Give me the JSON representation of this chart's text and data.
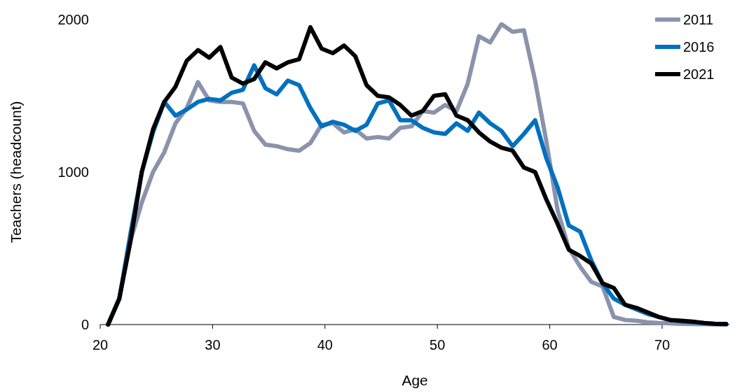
{
  "chart_data": {
    "type": "line",
    "xlabel": "Age",
    "ylabel": "Teachers (headcount)",
    "x": [
      20.7,
      21.7,
      22.7,
      23.7,
      24.7,
      25.7,
      26.7,
      27.7,
      28.7,
      29.7,
      30.7,
      31.7,
      32.7,
      33.7,
      34.7,
      35.7,
      36.7,
      37.7,
      38.7,
      39.7,
      40.7,
      41.7,
      42.7,
      43.7,
      44.7,
      45.7,
      46.7,
      47.7,
      48.7,
      49.7,
      50.7,
      51.7,
      52.7,
      53.7,
      54.7,
      55.7,
      56.7,
      57.7,
      58.7,
      59.7,
      60.7,
      61.7,
      62.7,
      63.7,
      64.7,
      65.7,
      66.7,
      67.7,
      68.7,
      69.7,
      70.7,
      71.7,
      72.7,
      73.7,
      74.7,
      75.7
    ],
    "series": [
      {
        "name": "2011",
        "color": "#8a93ab",
        "values": [
          0,
          170,
          550,
          800,
          1000,
          1130,
          1320,
          1420,
          1590,
          1470,
          1460,
          1460,
          1450,
          1270,
          1180,
          1170,
          1150,
          1140,
          1190,
          1310,
          1320,
          1260,
          1280,
          1220,
          1230,
          1220,
          1290,
          1300,
          1400,
          1390,
          1440,
          1400,
          1580,
          1890,
          1850,
          1970,
          1920,
          1930,
          1600,
          1200,
          750,
          500,
          380,
          280,
          250,
          50,
          30,
          25,
          15,
          10,
          8,
          5,
          3,
          2,
          1,
          0
        ]
      },
      {
        "name": "2016",
        "color": "#0070c0",
        "values": [
          0,
          170,
          600,
          1000,
          1260,
          1460,
          1370,
          1410,
          1460,
          1480,
          1470,
          1520,
          1540,
          1700,
          1550,
          1510,
          1600,
          1570,
          1420,
          1300,
          1330,
          1310,
          1270,
          1310,
          1450,
          1470,
          1340,
          1340,
          1290,
          1260,
          1250,
          1320,
          1270,
          1390,
          1320,
          1270,
          1170,
          1250,
          1340,
          1090,
          900,
          650,
          610,
          420,
          270,
          170,
          130,
          100,
          70,
          50,
          30,
          20,
          15,
          10,
          5,
          3
        ]
      },
      {
        "name": "2021",
        "color": "#000000",
        "values": [
          0,
          170,
          550,
          1000,
          1280,
          1460,
          1560,
          1730,
          1800,
          1750,
          1820,
          1620,
          1580,
          1610,
          1720,
          1680,
          1720,
          1740,
          1950,
          1810,
          1780,
          1830,
          1760,
          1570,
          1500,
          1490,
          1440,
          1370,
          1400,
          1500,
          1510,
          1370,
          1340,
          1260,
          1200,
          1160,
          1140,
          1030,
          1000,
          820,
          660,
          490,
          450,
          400,
          270,
          240,
          130,
          110,
          80,
          50,
          30,
          25,
          20,
          10,
          5,
          3
        ]
      }
    ],
    "xlim": [
      20,
      76
    ],
    "xticks": [
      20,
      30,
      40,
      50,
      60,
      70
    ],
    "ylim": [
      0,
      2000
    ],
    "yticks": [
      0,
      1000,
      2000
    ],
    "legend": "top right",
    "grid": false,
    "marker": "none",
    "line_style": "solid"
  }
}
